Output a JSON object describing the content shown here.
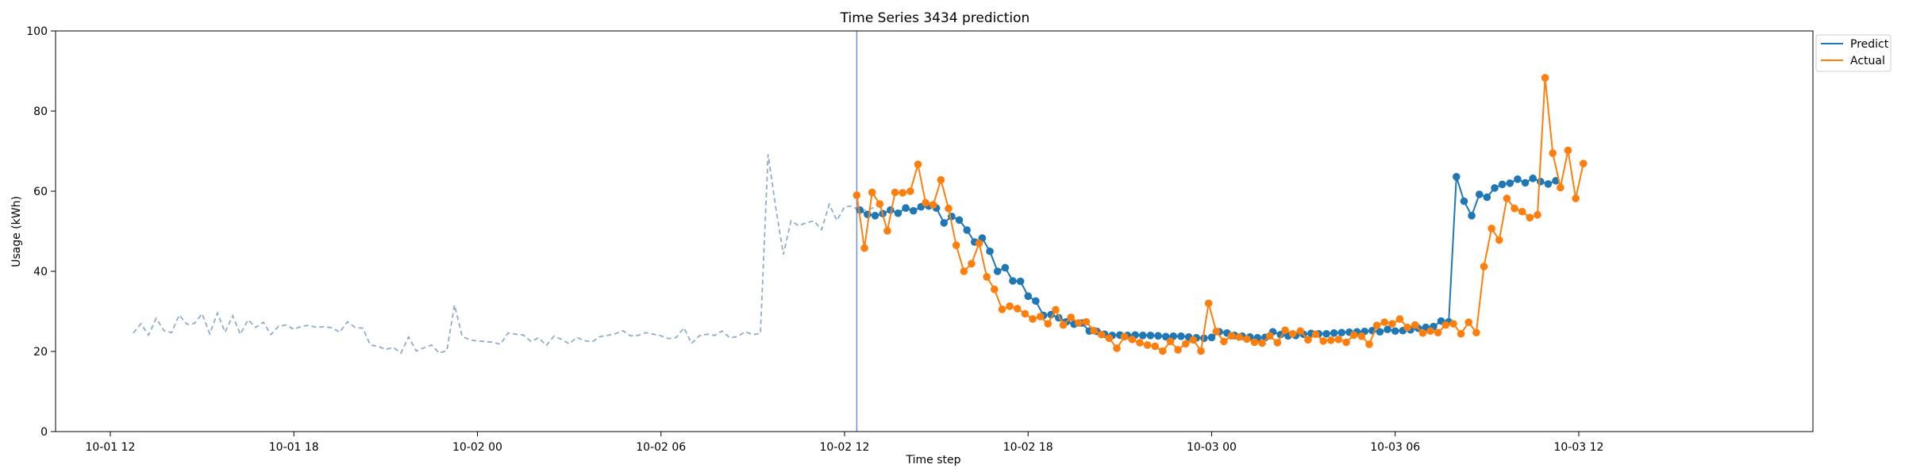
{
  "chart_data": {
    "type": "line",
    "title": "Time Series 3434 prediction",
    "xlabel": "Time step",
    "ylabel": "Usage (kWh)",
    "ylim": [
      0,
      100
    ],
    "y_ticks": [
      0,
      20,
      40,
      60,
      80,
      100
    ],
    "x_range_hours": [
      0,
      44
    ],
    "x_ticks": [
      {
        "label": "10-01 12",
        "hour": 0
      },
      {
        "label": "10-01 18",
        "hour": 6
      },
      {
        "label": "10-02 00",
        "hour": 12
      },
      {
        "label": "10-02 06",
        "hour": 18
      },
      {
        "label": "10-02 12",
        "hour": 24
      },
      {
        "label": "10-02 18",
        "hour": 30
      },
      {
        "label": "10-03 00",
        "hour": 36
      },
      {
        "label": "10-03 06",
        "hour": 42
      },
      {
        "label": "10-03 12",
        "hour": 48
      }
    ],
    "x_step_hours": 0.25,
    "grid": false,
    "legend_position": "top-right, outside plot",
    "forecast_start_hour": 24.4,
    "history_series": {
      "start_hour": 0.75,
      "color": "#8fadc9",
      "style": "dashed",
      "values": [
        24.6,
        26.9,
        24.1,
        28.3,
        25.2,
        24.7,
        29.1,
        26.8,
        27.0,
        29.4,
        24.4,
        29.6,
        24.8,
        28.9,
        24.3,
        27.9,
        26.0,
        27.3,
        24.2,
        26.3,
        26.6,
        25.5,
        26.3,
        26.5,
        26.0,
        26.2,
        25.9,
        24.8,
        27.4,
        26.0,
        25.8,
        21.6,
        21.3,
        20.5,
        21.0,
        19.6,
        23.6,
        20.1,
        20.9,
        21.6,
        19.6,
        20.2,
        31.6,
        23.8,
        22.9,
        22.6,
        22.5,
        22.3,
        21.8,
        24.6,
        24.3,
        24.1,
        22.5,
        23.4,
        21.5,
        23.8,
        23.0,
        21.9,
        23.5,
        22.7,
        22.4,
        23.7,
        24.0,
        24.4,
        25.2,
        23.9,
        24.0,
        24.7,
        24.3,
        23.9,
        23.2,
        23.5,
        25.9,
        22.0,
        23.9,
        24.3,
        24.0,
        25.1,
        23.4,
        23.7,
        24.9,
        24.2,
        24.5,
        69.2,
        56.0,
        44.2,
        52.6,
        51.4,
        52.1,
        52.6,
        50.4,
        56.7,
        52.7,
        56.1,
        56.3,
        55.1,
        55.4,
        56.0
      ]
    },
    "series": [
      {
        "name": "Predict",
        "color": "#1f77b4",
        "start_hour": 24.5,
        "values": [
          55.3,
          54.2,
          53.9,
          54.4,
          55.3,
          54.5,
          55.8,
          55.1,
          56.1,
          56.3,
          55.8,
          52.1,
          53.7,
          52.8,
          50.3,
          47.3,
          48.3,
          45.0,
          40.0,
          40.9,
          37.6,
          37.5,
          33.8,
          32.6,
          29.0,
          29.2,
          28.4,
          27.4,
          26.8,
          27.1,
          25.1,
          25.0,
          24.3,
          24.0,
          24.1,
          24.0,
          24.1,
          24.0,
          24.0,
          23.9,
          23.7,
          23.8,
          23.8,
          23.6,
          23.4,
          23.3,
          23.5,
          24.9,
          24.6,
          24.0,
          23.8,
          23.6,
          23.4,
          23.5,
          24.9,
          24.2,
          23.9,
          24.0,
          24.3,
          24.5,
          24.4,
          24.4,
          24.6,
          24.7,
          24.8,
          24.9,
          25.0,
          25.2,
          24.9,
          25.5,
          25.1,
          25.2,
          25.4,
          25.8,
          26.0,
          26.2,
          27.6,
          27.4,
          63.6,
          57.5,
          53.9,
          59.2,
          58.5,
          60.8,
          61.7,
          62.0,
          63.0,
          62.1,
          63.2,
          62.4,
          61.8,
          62.6
        ]
      },
      {
        "name": "Actual",
        "color": "#ff7f0e",
        "start_hour": 24.4,
        "values": [
          59.0,
          45.8,
          59.7,
          56.8,
          50.1,
          59.7,
          59.6,
          60.0,
          66.7,
          57.1,
          56.6,
          62.8,
          55.7,
          46.5,
          40.0,
          41.9,
          47.0,
          38.6,
          35.5,
          30.5,
          31.3,
          30.7,
          29.4,
          28.1,
          28.7,
          26.9,
          30.4,
          26.6,
          28.5,
          27.1,
          27.4,
          25.2,
          24.2,
          23.3,
          20.8,
          23.7,
          23.0,
          22.2,
          21.6,
          21.3,
          20.1,
          22.5,
          20.4,
          21.9,
          22.9,
          20.1,
          32.0,
          25.0,
          22.5,
          23.9,
          23.6,
          23.1,
          22.3,
          22.1,
          23.9,
          22.2,
          25.3,
          24.4,
          25.1,
          22.9,
          24.3,
          22.6,
          22.8,
          23.0,
          22.3,
          24.1,
          23.8,
          21.8,
          26.5,
          27.3,
          26.9,
          28.1,
          26.0,
          26.6,
          24.6,
          25.1,
          24.7,
          26.6,
          26.9,
          24.4,
          27.3,
          24.7,
          41.2,
          50.7,
          47.8,
          58.2,
          55.7,
          54.9,
          53.4,
          54.1,
          88.3,
          69.5,
          60.9,
          70.2,
          58.2,
          66.9
        ]
      }
    ]
  }
}
